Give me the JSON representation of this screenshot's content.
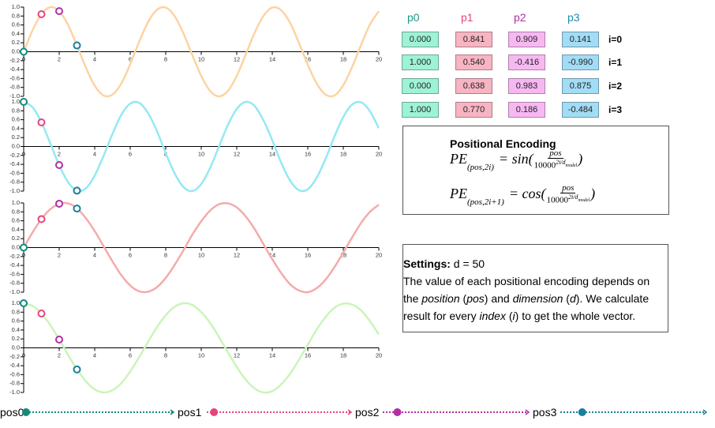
{
  "chart_data": [
    {
      "type": "line",
      "xlim": [
        0,
        20
      ],
      "ylim": [
        -1,
        1
      ],
      "xticks": [
        0,
        2,
        4,
        6,
        8,
        10,
        12,
        14,
        16,
        18,
        20
      ],
      "yticks": [
        {
          "value": 1,
          "label": "1.0"
        },
        {
          "value": 0.8,
          "label": "0.8"
        },
        {
          "value": 0.6,
          "label": "0.6"
        },
        {
          "value": 0.4,
          "label": "0.4"
        },
        {
          "value": 0.2,
          "label": "0.2"
        },
        {
          "value": 0,
          "label": "0.0"
        },
        {
          "value": -0.2,
          "label": "-0.2"
        },
        {
          "value": -0.4,
          "label": "-0.4"
        },
        {
          "value": -0.6,
          "label": "-0.6"
        },
        {
          "value": -0.8,
          "label": "-0.8"
        },
        {
          "value": -1,
          "label": "-1.0"
        }
      ],
      "x": [
        0,
        0.5,
        1,
        1.5,
        2,
        2.5,
        3,
        3.5,
        4,
        4.5,
        5,
        5.5,
        6,
        6.5,
        7,
        7.5,
        8,
        8.5,
        9,
        9.5,
        10,
        10.5,
        11,
        11.5,
        12,
        12.5,
        13,
        13.5,
        14,
        14.5,
        15,
        15.5,
        16,
        16.5,
        17,
        17.5,
        18,
        18.5,
        19,
        19.5,
        20
      ],
      "series": [
        {
          "color": "#fdd3a2",
          "values": [
            0,
            0.48,
            0.84,
            1.0,
            0.91,
            0.6,
            0.14,
            -0.35,
            -0.76,
            -0.98,
            -0.96,
            -0.71,
            -0.28,
            0.22,
            0.66,
            0.94,
            0.99,
            0.8,
            0.41,
            -0.08,
            -0.54,
            -0.88,
            -1.0,
            -0.88,
            -0.54,
            -0.07,
            0.42,
            0.8,
            0.99,
            0.93,
            0.65,
            0.2,
            -0.29,
            -0.71,
            -0.96,
            -0.98,
            -0.75,
            -0.34,
            0.15,
            0.61,
            0.91
          ]
        }
      ],
      "points": {
        "x": [
          0,
          1,
          2,
          3
        ],
        "values": [
          0,
          0.841,
          0.909,
          0.141
        ],
        "value_labels": [
          "0.000",
          "0.841",
          "0.909",
          "0.141"
        ],
        "colors": [
          "#128a7a",
          "#e8447c",
          "#b12fa3",
          "#1a7f9a"
        ]
      }
    },
    {
      "type": "line",
      "xlim": [
        0,
        20
      ],
      "ylim": [
        -1,
        1
      ],
      "xticks": [
        0,
        2,
        4,
        6,
        8,
        10,
        12,
        14,
        16,
        18,
        20
      ],
      "yticks": [
        {
          "value": 1,
          "label": "1.0"
        },
        {
          "value": 0.8,
          "label": "0.8"
        },
        {
          "value": 0.6,
          "label": "0.6"
        },
        {
          "value": 0.4,
          "label": "0.4"
        },
        {
          "value": 0.2,
          "label": "0.2"
        },
        {
          "value": 0,
          "label": "0.0"
        },
        {
          "value": -0.2,
          "label": "-0.2"
        },
        {
          "value": -0.4,
          "label": "-0.4"
        },
        {
          "value": -0.6,
          "label": "-0.6"
        },
        {
          "value": -0.8,
          "label": "-0.8"
        },
        {
          "value": -1,
          "label": "-1.0"
        }
      ],
      "x": [
        0,
        0.5,
        1,
        1.5,
        2,
        2.5,
        3,
        3.5,
        4,
        4.5,
        5,
        5.5,
        6,
        6.5,
        7,
        7.5,
        8,
        8.5,
        9,
        9.5,
        10,
        10.5,
        11,
        11.5,
        12,
        12.5,
        13,
        13.5,
        14,
        14.5,
        15,
        15.5,
        16,
        16.5,
        17,
        17.5,
        18,
        18.5,
        19,
        19.5,
        20
      ],
      "series": [
        {
          "color": "#93e9f2",
          "values": [
            1,
            0.88,
            0.54,
            0.07,
            -0.42,
            -0.8,
            -0.99,
            -0.94,
            -0.65,
            -0.21,
            0.28,
            0.71,
            0.96,
            0.98,
            0.75,
            0.35,
            -0.15,
            -0.6,
            -0.91,
            -1.0,
            -0.84,
            -0.48,
            0.0,
            0.48,
            0.84,
            1.0,
            0.91,
            0.59,
            0.14,
            -0.36,
            -0.76,
            -0.98,
            -0.96,
            -0.7,
            -0.28,
            0.22,
            0.66,
            0.94,
            0.99,
            0.79,
            0.41
          ]
        }
      ],
      "points": {
        "x": [
          0,
          1,
          2,
          3
        ],
        "values": [
          1,
          0.54,
          -0.416,
          -0.99
        ],
        "value_labels": [
          "1.000",
          "0.540",
          "-0.416",
          "-0.990"
        ],
        "colors": [
          "#128a7a",
          "#e8447c",
          "#b12fa3",
          "#1a7f9a"
        ]
      }
    },
    {
      "type": "line",
      "xlim": [
        0,
        20
      ],
      "ylim": [
        -1,
        1
      ],
      "xticks": [
        0,
        2,
        4,
        6,
        8,
        10,
        12,
        14,
        16,
        18,
        20
      ],
      "yticks": [
        {
          "value": 1,
          "label": "1.0"
        },
        {
          "value": 0.8,
          "label": "0.8"
        },
        {
          "value": 0.6,
          "label": "0.6"
        },
        {
          "value": 0.4,
          "label": "0.4"
        },
        {
          "value": 0.2,
          "label": "0.2"
        },
        {
          "value": 0,
          "label": "0.0"
        },
        {
          "value": -0.2,
          "label": "-0.2"
        },
        {
          "value": -0.4,
          "label": "-0.4"
        },
        {
          "value": -0.6,
          "label": "-0.6"
        },
        {
          "value": -0.8,
          "label": "-0.8"
        },
        {
          "value": -1,
          "label": "-1.0"
        }
      ],
      "x": [
        0,
        0.5,
        1,
        1.5,
        2,
        2.5,
        3,
        3.5,
        4,
        4.5,
        5,
        5.5,
        6,
        6.5,
        7,
        7.5,
        8,
        8.5,
        9,
        9.5,
        10,
        10.5,
        11,
        11.5,
        12,
        12.5,
        13,
        13.5,
        14,
        14.5,
        15,
        15.5,
        16,
        16.5,
        17,
        17.5,
        18,
        18.5,
        19,
        19.5,
        20
      ],
      "series": [
        {
          "color": "#f6aaaa",
          "values": [
            0,
            0.34,
            0.64,
            0.86,
            0.98,
            0.99,
            0.88,
            0.66,
            0.37,
            0.03,
            -0.31,
            -0.62,
            -0.85,
            -0.98,
            -0.99,
            -0.89,
            -0.68,
            -0.39,
            -0.06,
            0.29,
            0.59,
            0.83,
            0.97,
            0.99,
            0.9,
            0.7,
            0.42,
            0.08,
            -0.26,
            -0.57,
            -0.82,
            -0.96,
            -1.0,
            -0.91,
            -0.72,
            -0.44,
            -0.11,
            0.23,
            0.55,
            0.8,
            0.96
          ]
        }
      ],
      "points": {
        "x": [
          0,
          1,
          2,
          3
        ],
        "values": [
          0,
          0.638,
          0.983,
          0.875
        ],
        "value_labels": [
          "0.000",
          "0.638",
          "0.983",
          "0.875"
        ],
        "colors": [
          "#128a7a",
          "#e8447c",
          "#b12fa3",
          "#1a7f9a"
        ]
      }
    },
    {
      "type": "line",
      "xlim": [
        0,
        20
      ],
      "ylim": [
        -1,
        1
      ],
      "xticks": [
        0,
        2,
        4,
        6,
        8,
        10,
        12,
        14,
        16,
        18,
        20
      ],
      "yticks": [
        {
          "value": 1,
          "label": "1.0"
        },
        {
          "value": 0.8,
          "label": "0.8"
        },
        {
          "value": 0.6,
          "label": "0.6"
        },
        {
          "value": 0.4,
          "label": "0.4"
        },
        {
          "value": 0.2,
          "label": "0.2"
        },
        {
          "value": 0,
          "label": "0.0"
        },
        {
          "value": -0.2,
          "label": "-0.2"
        },
        {
          "value": -0.4,
          "label": "-0.4"
        },
        {
          "value": -0.6,
          "label": "-0.6"
        },
        {
          "value": -0.8,
          "label": "-0.8"
        },
        {
          "value": -1,
          "label": "-1.0"
        }
      ],
      "x": [
        0,
        0.5,
        1,
        1.5,
        2,
        2.5,
        3,
        3.5,
        4,
        4.5,
        5,
        5.5,
        6,
        6.5,
        7,
        7.5,
        8,
        8.5,
        9,
        9.5,
        10,
        10.5,
        11,
        11.5,
        12,
        12.5,
        13,
        13.5,
        14,
        14.5,
        15,
        15.5,
        16,
        16.5,
        17,
        17.5,
        18,
        18.5,
        19,
        19.5,
        20
      ],
      "series": [
        {
          "color": "#c9f5b8",
          "values": [
            1,
            0.94,
            0.77,
            0.51,
            0.19,
            -0.16,
            -0.48,
            -0.75,
            -0.93,
            -1.0,
            -0.95,
            -0.79,
            -0.53,
            -0.21,
            0.13,
            0.46,
            0.73,
            0.92,
            1.0,
            0.96,
            0.8,
            0.56,
            0.24,
            -0.1,
            -0.43,
            -0.71,
            -0.91,
            -1.0,
            -0.97,
            -0.82,
            -0.58,
            -0.27,
            0.07,
            0.41,
            0.69,
            0.9,
            0.99,
            0.97,
            0.84,
            0.6,
            0.3
          ]
        }
      ],
      "points": {
        "x": [
          0,
          1,
          2,
          3
        ],
        "values": [
          1,
          0.77,
          0.186,
          -0.484
        ],
        "value_labels": [
          "1.000",
          "0.770",
          "0.186",
          "-0.484"
        ],
        "colors": [
          "#128a7a",
          "#e8447c",
          "#b12fa3",
          "#1a7f9a"
        ]
      }
    }
  ],
  "table": {
    "columns": [
      "p0",
      "p1",
      "p2",
      "p3"
    ],
    "column_colors": [
      "#1a9a88",
      "#e8447c",
      "#b12fa3",
      "#1a8cb0"
    ],
    "cell_colors": [
      "#9ef2d6",
      "#f7b4c2",
      "#f7b8f2",
      "#a2dcf5"
    ],
    "rows": [
      "i=0",
      "i=1",
      "i=2",
      "i=3"
    ]
  },
  "formula": {
    "title": "Positional Encoding",
    "lines": [
      {
        "lhs": "PE",
        "sub": "(pos,2i)",
        "eq": "= sin(",
        "num": "pos",
        "den": "10000",
        "sup": "2i/d",
        "supsub": "model",
        "close": ")"
      },
      {
        "lhs": "PE",
        "sub": "(pos,2i+1)",
        "eq": "= cos(",
        "num": "pos",
        "den": "10000",
        "sup": "2i/d",
        "supsub": "model",
        "close": ")"
      }
    ]
  },
  "settings": {
    "label": "Settings:",
    "value": "d = 50",
    "paragraph": [
      {
        "text": "The value of each positional encoding depends on the ",
        "italic": false
      },
      {
        "text": "position",
        "italic": true
      },
      {
        "text": " (",
        "italic": false
      },
      {
        "text": "pos",
        "italic": true
      },
      {
        "text": ") and ",
        "italic": false
      },
      {
        "text": "dimension",
        "italic": true
      },
      {
        "text": " (",
        "italic": false
      },
      {
        "text": "d",
        "italic": true
      },
      {
        "text": "). We calculate result for every ",
        "italic": false
      },
      {
        "text": "index",
        "italic": true
      },
      {
        "text": " (",
        "italic": false
      },
      {
        "text": "i",
        "italic": true
      },
      {
        "text": ") to get the whole vector.",
        "italic": false
      }
    ]
  },
  "sliders": {
    "min": 0,
    "max": 20,
    "items": [
      {
        "label": "pos0",
        "value": 0,
        "color": "#128a7a"
      },
      {
        "label": "pos1",
        "value": 1,
        "color": "#e8447c"
      },
      {
        "label": "pos2",
        "value": 2,
        "color": "#b12fa3"
      },
      {
        "label": "pos3",
        "value": 3,
        "color": "#1a7f9a"
      }
    ]
  }
}
